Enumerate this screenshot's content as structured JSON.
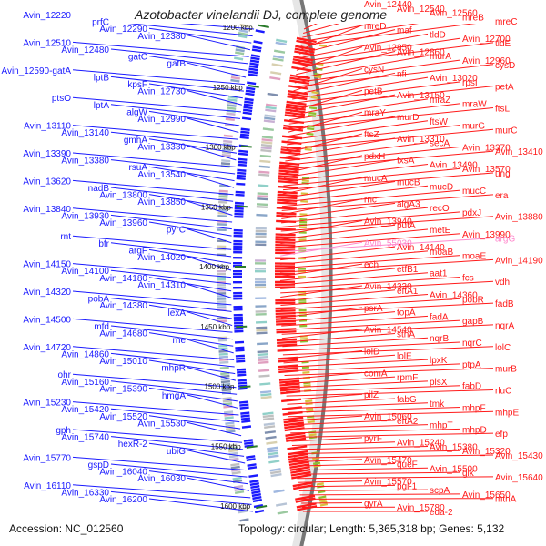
{
  "title": "Azotobacter vinelandii DJ, complete genome",
  "accession": "Accession: NC_012560",
  "summary": "Topology: circular; Length: 5,365,318 bp; Genes: 5,132",
  "colors": {
    "minus_strand": "#1a1aff",
    "plus_strand": "#ff1a1a",
    "highlight_gene": "#ff88cc",
    "backbone": "#888888",
    "tick_mark": "#2a7a2a"
  },
  "kbp_ticks": [
    "1200 kbp",
    "1250 kbp",
    "1300 kbp",
    "1350 kbp",
    "1400 kbp",
    "1450 kbp",
    "1500 kbp",
    "1550 kbp",
    "1600 kbp"
  ],
  "left_genes": [
    "Avin_12220",
    "prfC",
    "Avin_12290",
    "Avin_12380",
    "Avin_12510",
    "Avin_12480",
    "gatC",
    "gatB",
    "Avin_12590-gatA",
    "lptB",
    "kpsF",
    "Avin_12730",
    "ptsO",
    "lptA",
    "algW",
    "Avin_12990",
    "Avin_13110",
    "Avin_13140",
    "gmhA",
    "Avin_13330",
    "Avin_13390",
    "Avin_13380",
    "rsuA",
    "Avin_13540",
    "Avin_13620",
    "nadB",
    "Avin_13800",
    "Avin_13850",
    "Avin_13840",
    "Avin_13930",
    "Avin_13960",
    "pyrC",
    "rnt",
    "bfr",
    "argF",
    "Avin_14020",
    "Avin_14150",
    "Avin_14100",
    "Avin_14180",
    "Avin_14310",
    "Avin_14320",
    "pobA",
    "Avin_14380",
    "lexA",
    "Avin_14500",
    "mfd",
    "Avin_14680",
    "rne",
    "Avin_14720",
    "Avin_14860",
    "Avin_15010",
    "mhpR",
    "ohr",
    "Avin_15160",
    "Avin_15390",
    "hmgA",
    "Avin_15230",
    "Avin_15420",
    "Avin_15520",
    "Avin_15530",
    "gph",
    "Avin_15740",
    "hexR-2",
    "ubiG",
    "Avin_15770",
    "gspD",
    "Avin_16040",
    "Avin_16030",
    "Avin_16110",
    "Avin_16330",
    "Avin_16200"
  ],
  "right_genes": [
    "Avin_12440",
    "Avin_12540",
    "Avin_12560",
    "mreB",
    "mreC",
    "mreD",
    "maf",
    "tldD",
    "Avin_12700",
    "tldE",
    "Avin_12850",
    "Avin_12860",
    "murA",
    "Avin_12960",
    "cysD",
    "cysN",
    "nfi",
    "Avin_13020",
    "rpsI",
    "petA",
    "petB",
    "Avin_13150",
    "mraZ",
    "mraW",
    "ftsL",
    "mraY",
    "murD",
    "ftsW",
    "murG",
    "murC",
    "ftsZ",
    "Avin_13310",
    "secA",
    "Avin_13370",
    "Avin_13410",
    "pdxH",
    "fxsA",
    "Avin_13490",
    "Avin_13570",
    "ung",
    "mucA",
    "mucB",
    "mucD",
    "mucC",
    "era",
    "rnc",
    "algA3",
    "recO",
    "pdxJ",
    "Avin_13880",
    "Avin_13940",
    "putA",
    "metE",
    "Avin_13990",
    "argG",
    "Avin_55030",
    "Avin_14140",
    "moaB",
    "moaE",
    "Avin_14190",
    "ech",
    "etfB1",
    "aat1",
    "fcs",
    "vdh",
    "Avin_14330",
    "eftA1",
    "Avin_14360",
    "pobR",
    "fadB",
    "psrA",
    "topA",
    "fadA",
    "gapB",
    "nqrA",
    "Avin_14540",
    "sthA",
    "nqrB",
    "nqrC",
    "lolC",
    "lolD",
    "lolE",
    "lpxK",
    "ptpA",
    "murB",
    "comA",
    "rpmF",
    "plsX",
    "fabD",
    "rluC",
    "pilZ",
    "fabG",
    "tmk",
    "mhpF",
    "mhpE",
    "Avin_15060",
    "eftA2",
    "mhpT",
    "mhpD",
    "efp",
    "pyrF",
    "Avin_15240",
    "Avin_15380",
    "Avin_15320",
    "Avin_15430",
    "Avin_15470",
    "queF",
    "Avin_15500",
    "glk",
    "Avin_15640",
    "Avin_15570",
    "pgl-1",
    "scpA",
    "Avin_15650",
    "mtnA",
    "gyrA",
    "Avin_15780",
    "eda-2"
  ]
}
